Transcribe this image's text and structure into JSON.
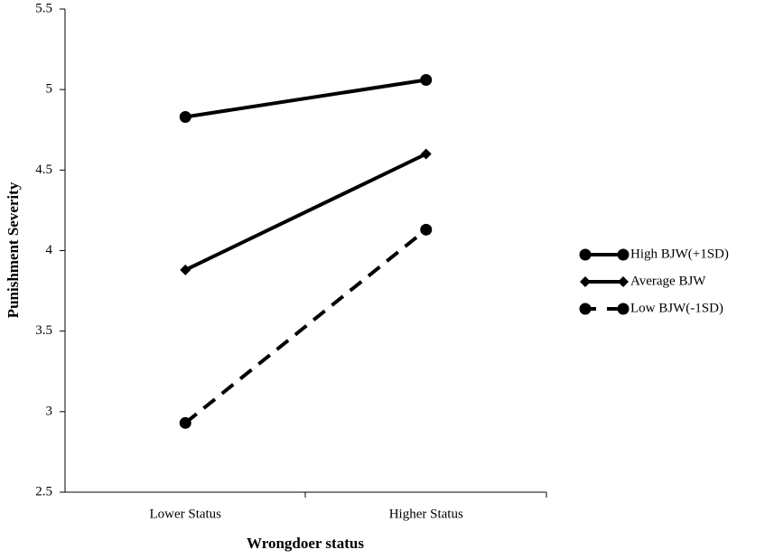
{
  "chart_data": {
    "type": "line",
    "x_label": "Wrongdoer status",
    "y_label": "Punishment Severity",
    "categories": [
      "Lower Status",
      "Higher Status"
    ],
    "series": [
      {
        "name": "High BJW(+1SD)",
        "color": "#000000",
        "marker": "circle",
        "dashed": false,
        "values": [
          4.83,
          5.06
        ]
      },
      {
        "name": "Average BJW",
        "color": "#000000",
        "marker": "diamond",
        "dashed": false,
        "values": [
          3.88,
          4.6
        ]
      },
      {
        "name": "Low BJW(-1SD)",
        "color": "#000000",
        "marker": "circle",
        "dashed": true,
        "values": [
          2.93,
          4.13
        ]
      }
    ],
    "ylim": [
      2.5,
      5.5
    ],
    "yticks": [
      2.5,
      3,
      3.5,
      4,
      4.5,
      5,
      5.5
    ],
    "grid": false,
    "legend": "right"
  }
}
